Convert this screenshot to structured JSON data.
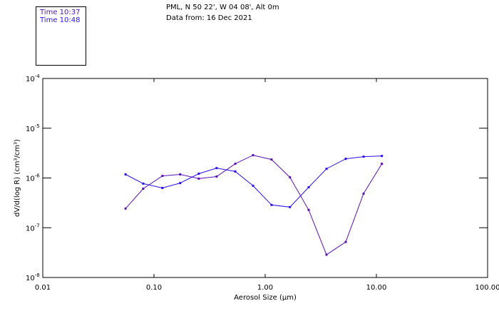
{
  "header": {
    "location": "PML, N 50 22', W 04 08', Alt 0m",
    "date": "Data from: 16 Dec 2021"
  },
  "chart_data": {
    "type": "line",
    "xscale": "log",
    "yscale": "log",
    "xlabel": "Aerosol Size (µm)",
    "ylabel": "dV/d(log R) (cm³/cm³)",
    "xlim": [
      0.01,
      100
    ],
    "ylim": [
      1e-08,
      0.0001
    ],
    "xtick_labels": [
      "0.01",
      "0.10",
      "1.00",
      "10.00",
      "100.00"
    ],
    "xtick_values": [
      0.01,
      0.1,
      1,
      10,
      100
    ],
    "ytick_values": [
      0.0001,
      1e-05,
      1e-06,
      1e-07,
      1e-08
    ],
    "ytick_labels": [
      {
        "base": "10",
        "exp": "-4"
      },
      {
        "base": "10",
        "exp": "-5"
      },
      {
        "base": "10",
        "exp": "-6"
      },
      {
        "base": "10",
        "exp": "-7"
      },
      {
        "base": "10",
        "exp": "-8"
      }
    ],
    "legend_placement": "top-left",
    "x": [
      0.0555,
      0.08,
      0.119,
      0.172,
      0.253,
      0.366,
      0.538,
      0.778,
      1.14,
      1.67,
      2.46,
      3.56,
      5.3,
      7.67,
      11.2
    ],
    "series": [
      {
        "name": "Time 10:37",
        "color": "#5a10b4",
        "values": [
          2.43e-07,
          6.1e-07,
          1.1e-06,
          1.18e-06,
          9.7e-07,
          1.07e-06,
          1.93e-06,
          2.87e-06,
          2.35e-06,
          1.03e-06,
          2.28e-07,
          2.87e-08,
          5.18e-08,
          4.85e-07,
          1.93e-06
        ]
      },
      {
        "name": "Time 10:48",
        "color": "#2a10f0",
        "values": [
          1.18e-06,
          7.7e-07,
          6.3e-07,
          7.9e-07,
          1.22e-06,
          1.58e-06,
          1.35e-06,
          6.97e-07,
          2.87e-07,
          2.6e-07,
          6.5e-07,
          1.53e-06,
          2.43e-06,
          2.68e-06,
          2.77e-06
        ]
      }
    ]
  }
}
